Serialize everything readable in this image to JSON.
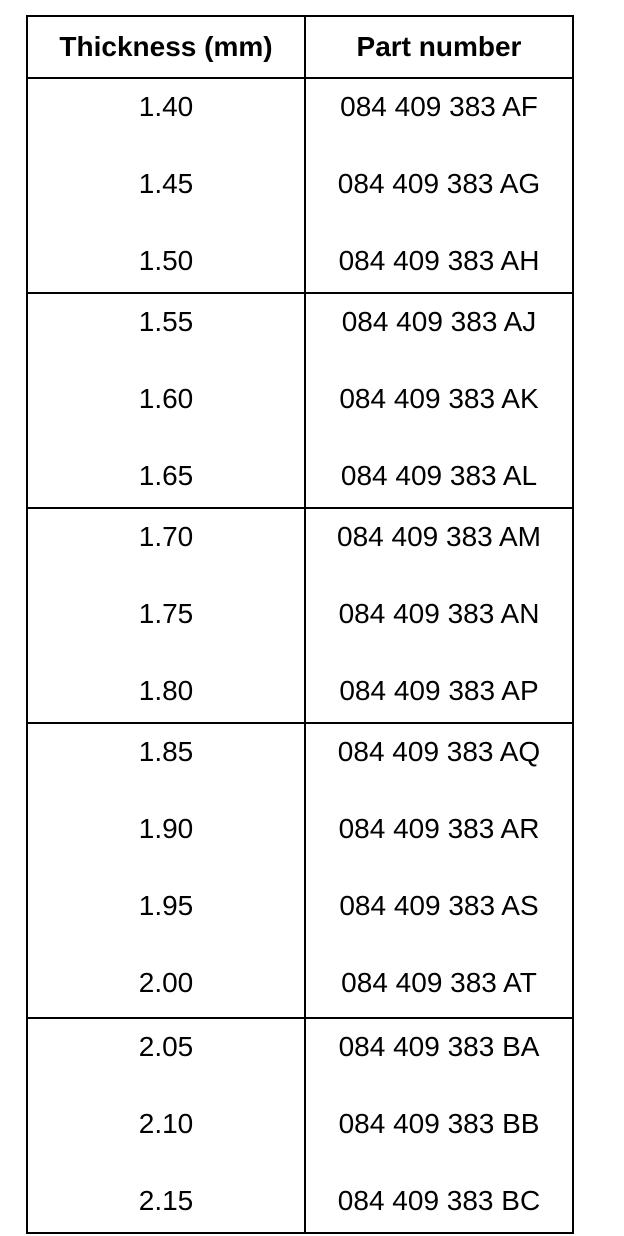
{
  "table": {
    "headers": [
      "Thickness (mm)",
      "Part number"
    ],
    "groups": [
      [
        [
          "1.40",
          "084 409 383 AF"
        ],
        [
          "1.45",
          "084 409 383 AG"
        ],
        [
          "1.50",
          "084 409 383 AH"
        ]
      ],
      [
        [
          "1.55",
          "084 409 383 AJ"
        ],
        [
          "1.60",
          "084 409 383 AK"
        ],
        [
          "1.65",
          "084 409 383 AL"
        ]
      ],
      [
        [
          "1.70",
          "084 409 383 AM"
        ],
        [
          "1.75",
          "084 409 383 AN"
        ],
        [
          "1.80",
          "084 409 383 AP"
        ]
      ],
      [
        [
          "1.85",
          "084 409 383 AQ"
        ],
        [
          "1.90",
          "084 409 383 AR"
        ],
        [
          "1.95",
          "084 409 383 AS"
        ],
        [
          "2.00",
          "084 409 383 AT"
        ]
      ],
      [
        [
          "2.05",
          "084 409 383 BA"
        ],
        [
          "2.10",
          "084 409 383 BB"
        ],
        [
          "2.15",
          "084 409 383 BC"
        ]
      ]
    ]
  }
}
